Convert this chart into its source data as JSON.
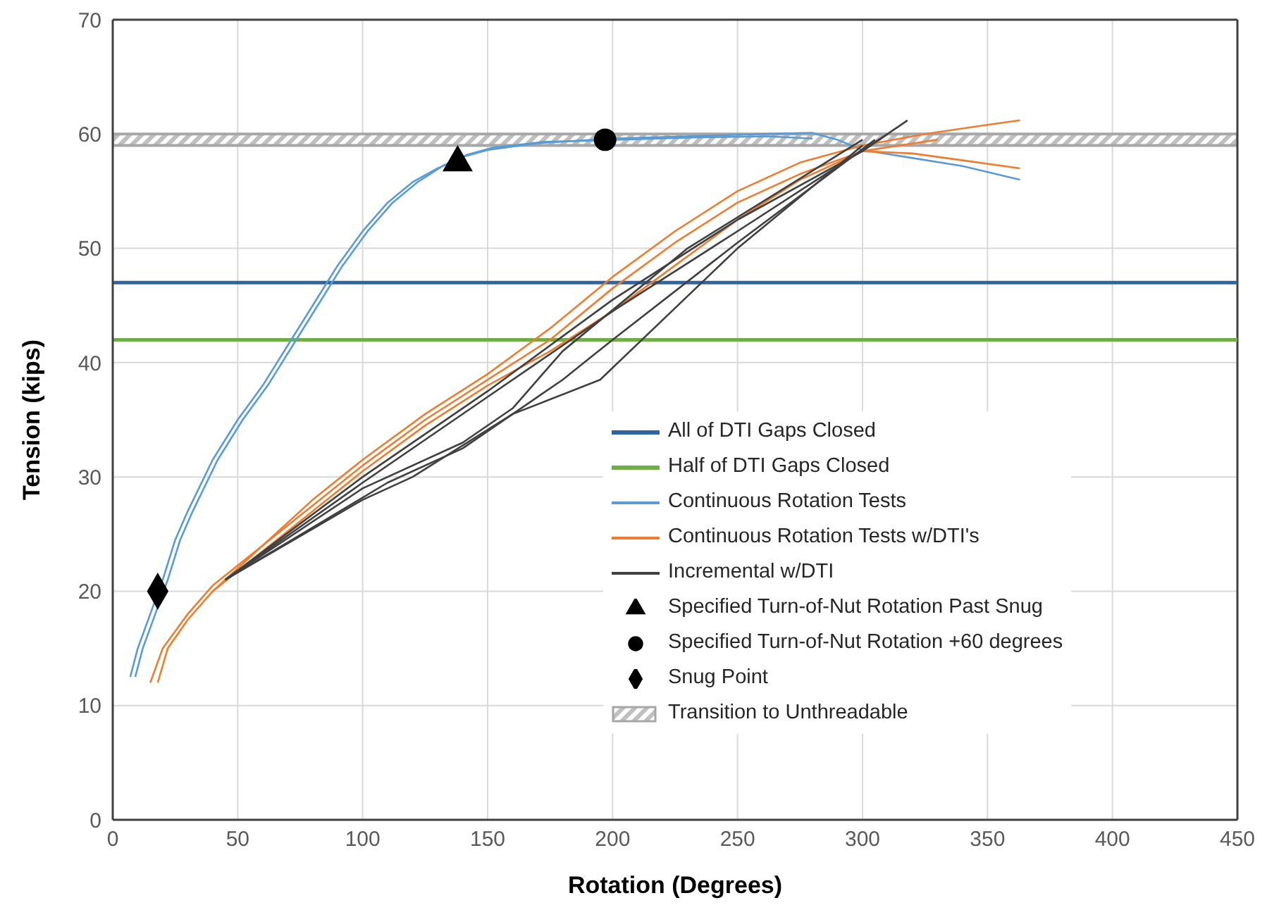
{
  "chart_data": {
    "type": "line",
    "xlabel": "Rotation (Degrees)",
    "ylabel": "Tension (kips)",
    "xlim": [
      0,
      450
    ],
    "xticks": [
      0,
      50,
      100,
      150,
      200,
      250,
      300,
      350,
      400,
      450
    ],
    "ylim": [
      0,
      70
    ],
    "yticks": [
      0,
      10,
      20,
      30,
      40,
      50,
      60,
      70
    ],
    "grid": true,
    "legend": "bottom right",
    "marker": "none",
    "ref_lines": [
      {
        "axis": "y",
        "value": 47,
        "label": "All of DTI Gaps Closed",
        "color": "#2e64a0"
      },
      {
        "axis": "y",
        "value": 42,
        "label": "Half of DTI Gaps Closed",
        "color": "#70ad47"
      }
    ],
    "bands": [
      {
        "axis": "y",
        "from": 59,
        "to": 60,
        "label": "Transition to Unthreadable",
        "color": "#a6a6a6"
      }
    ],
    "series": [
      {
        "name": "Continuous Rotation Tests",
        "type": "line",
        "color": "#5b9bd5",
        "x": [
          7,
          10,
          15,
          20,
          25,
          30,
          40,
          50,
          60,
          70,
          80,
          90,
          100,
          110,
          120,
          130,
          140,
          150,
          170,
          200,
          230,
          260,
          280,
          290,
          300,
          320,
          340,
          363
        ],
        "values": [
          12.5,
          15,
          18,
          21,
          24.5,
          27,
          31.5,
          35,
          38,
          41.5,
          45,
          48.5,
          51.5,
          54,
          55.8,
          57,
          58,
          58.6,
          59.2,
          59.6,
          59.8,
          60,
          60.1,
          59.5,
          58.6,
          57.9,
          57.2,
          56
        ]
      },
      {
        "type": "line",
        "color": "#5b9bd5",
        "x": [
          9,
          12,
          17,
          22,
          27,
          32,
          42,
          52,
          62,
          72,
          82,
          92,
          102,
          112,
          122,
          132,
          142,
          152,
          172,
          202,
          232,
          262,
          280
        ],
        "values": [
          12.5,
          15,
          18,
          21,
          24.5,
          27,
          31.5,
          35,
          38,
          41.5,
          45,
          48.5,
          51.5,
          54,
          55.8,
          57.2,
          58.2,
          58.8,
          59.3,
          59.5,
          59.7,
          59.8,
          59.6
        ]
      },
      {
        "name": "Continuous Rotation Tests w/DTI's",
        "type": "line",
        "color": "#ed7d31",
        "x": [
          15,
          20,
          30,
          40,
          60,
          80,
          100,
          125,
          150,
          175,
          200,
          225,
          250,
          275,
          300,
          325,
          350,
          363
        ],
        "values": [
          12,
          15,
          18,
          20.5,
          24,
          28,
          31.5,
          35.5,
          39,
          43,
          47.5,
          51.5,
          55,
          57.5,
          59,
          60,
          60.8,
          61.2
        ]
      },
      {
        "type": "line",
        "color": "#ed7d31",
        "x": [
          18,
          22,
          30,
          40,
          60,
          80,
          100,
          125,
          150,
          175,
          200,
          225,
          250,
          275,
          300,
          320,
          340,
          363
        ],
        "values": [
          12,
          15,
          17.5,
          20,
          24,
          27.5,
          31,
          35,
          38.5,
          42,
          46.5,
          50.5,
          54,
          56.5,
          58.5,
          58.3,
          57.7,
          57
        ]
      },
      {
        "type": "line",
        "color": "#ed7d31",
        "x": [
          40,
          60,
          80,
          100,
          125,
          150,
          175,
          200,
          225,
          250,
          275,
          300,
          330
        ],
        "values": [
          20,
          23.5,
          27,
          30.5,
          34.5,
          38,
          41,
          44.5,
          48.5,
          52.5,
          56,
          58.5,
          59.5
        ]
      },
      {
        "name": "Incremental w/DTI",
        "type": "line",
        "color": "#404040",
        "x": [
          45,
          100,
          150,
          200,
          250,
          300,
          318
        ],
        "values": [
          21,
          30,
          37.5,
          45.5,
          52.5,
          58.5,
          61.2
        ]
      },
      {
        "type": "line",
        "color": "#404040",
        "x": [
          45,
          100,
          150,
          200,
          250,
          310
        ],
        "values": [
          21,
          29.5,
          37,
          44.5,
          51.5,
          60
        ]
      },
      {
        "type": "line",
        "color": "#404040",
        "x": [
          45,
          100,
          140,
          160,
          180,
          230,
          300
        ],
        "values": [
          21,
          29,
          33,
          36,
          41,
          50,
          59.5
        ]
      },
      {
        "type": "line",
        "color": "#404040",
        "x": [
          45,
          110,
          140,
          180,
          200,
          250,
          305
        ],
        "values": [
          21,
          29.5,
          32.5,
          38.5,
          42,
          50.5,
          59.5
        ]
      },
      {
        "type": "line",
        "color": "#404040",
        "x": [
          45,
          100,
          120,
          160,
          195,
          250,
          300
        ],
        "values": [
          21,
          28,
          30,
          35.5,
          38.5,
          50,
          59
        ]
      },
      {
        "name": "Specified Turn-of-Nut Rotation Past Snug",
        "type": "scatter",
        "marker": "triangle",
        "color": "#000000",
        "x": [
          138
        ],
        "values": [
          57.5
        ]
      },
      {
        "name": "Specified Turn-of-Nut Rotation +60 degrees",
        "type": "scatter",
        "marker": "circle",
        "color": "#000000",
        "x": [
          197
        ],
        "values": [
          59.5
        ]
      },
      {
        "name": "Snug Point",
        "type": "scatter",
        "marker": "diamond",
        "color": "#000000",
        "x": [
          18
        ],
        "values": [
          20
        ]
      }
    ]
  }
}
